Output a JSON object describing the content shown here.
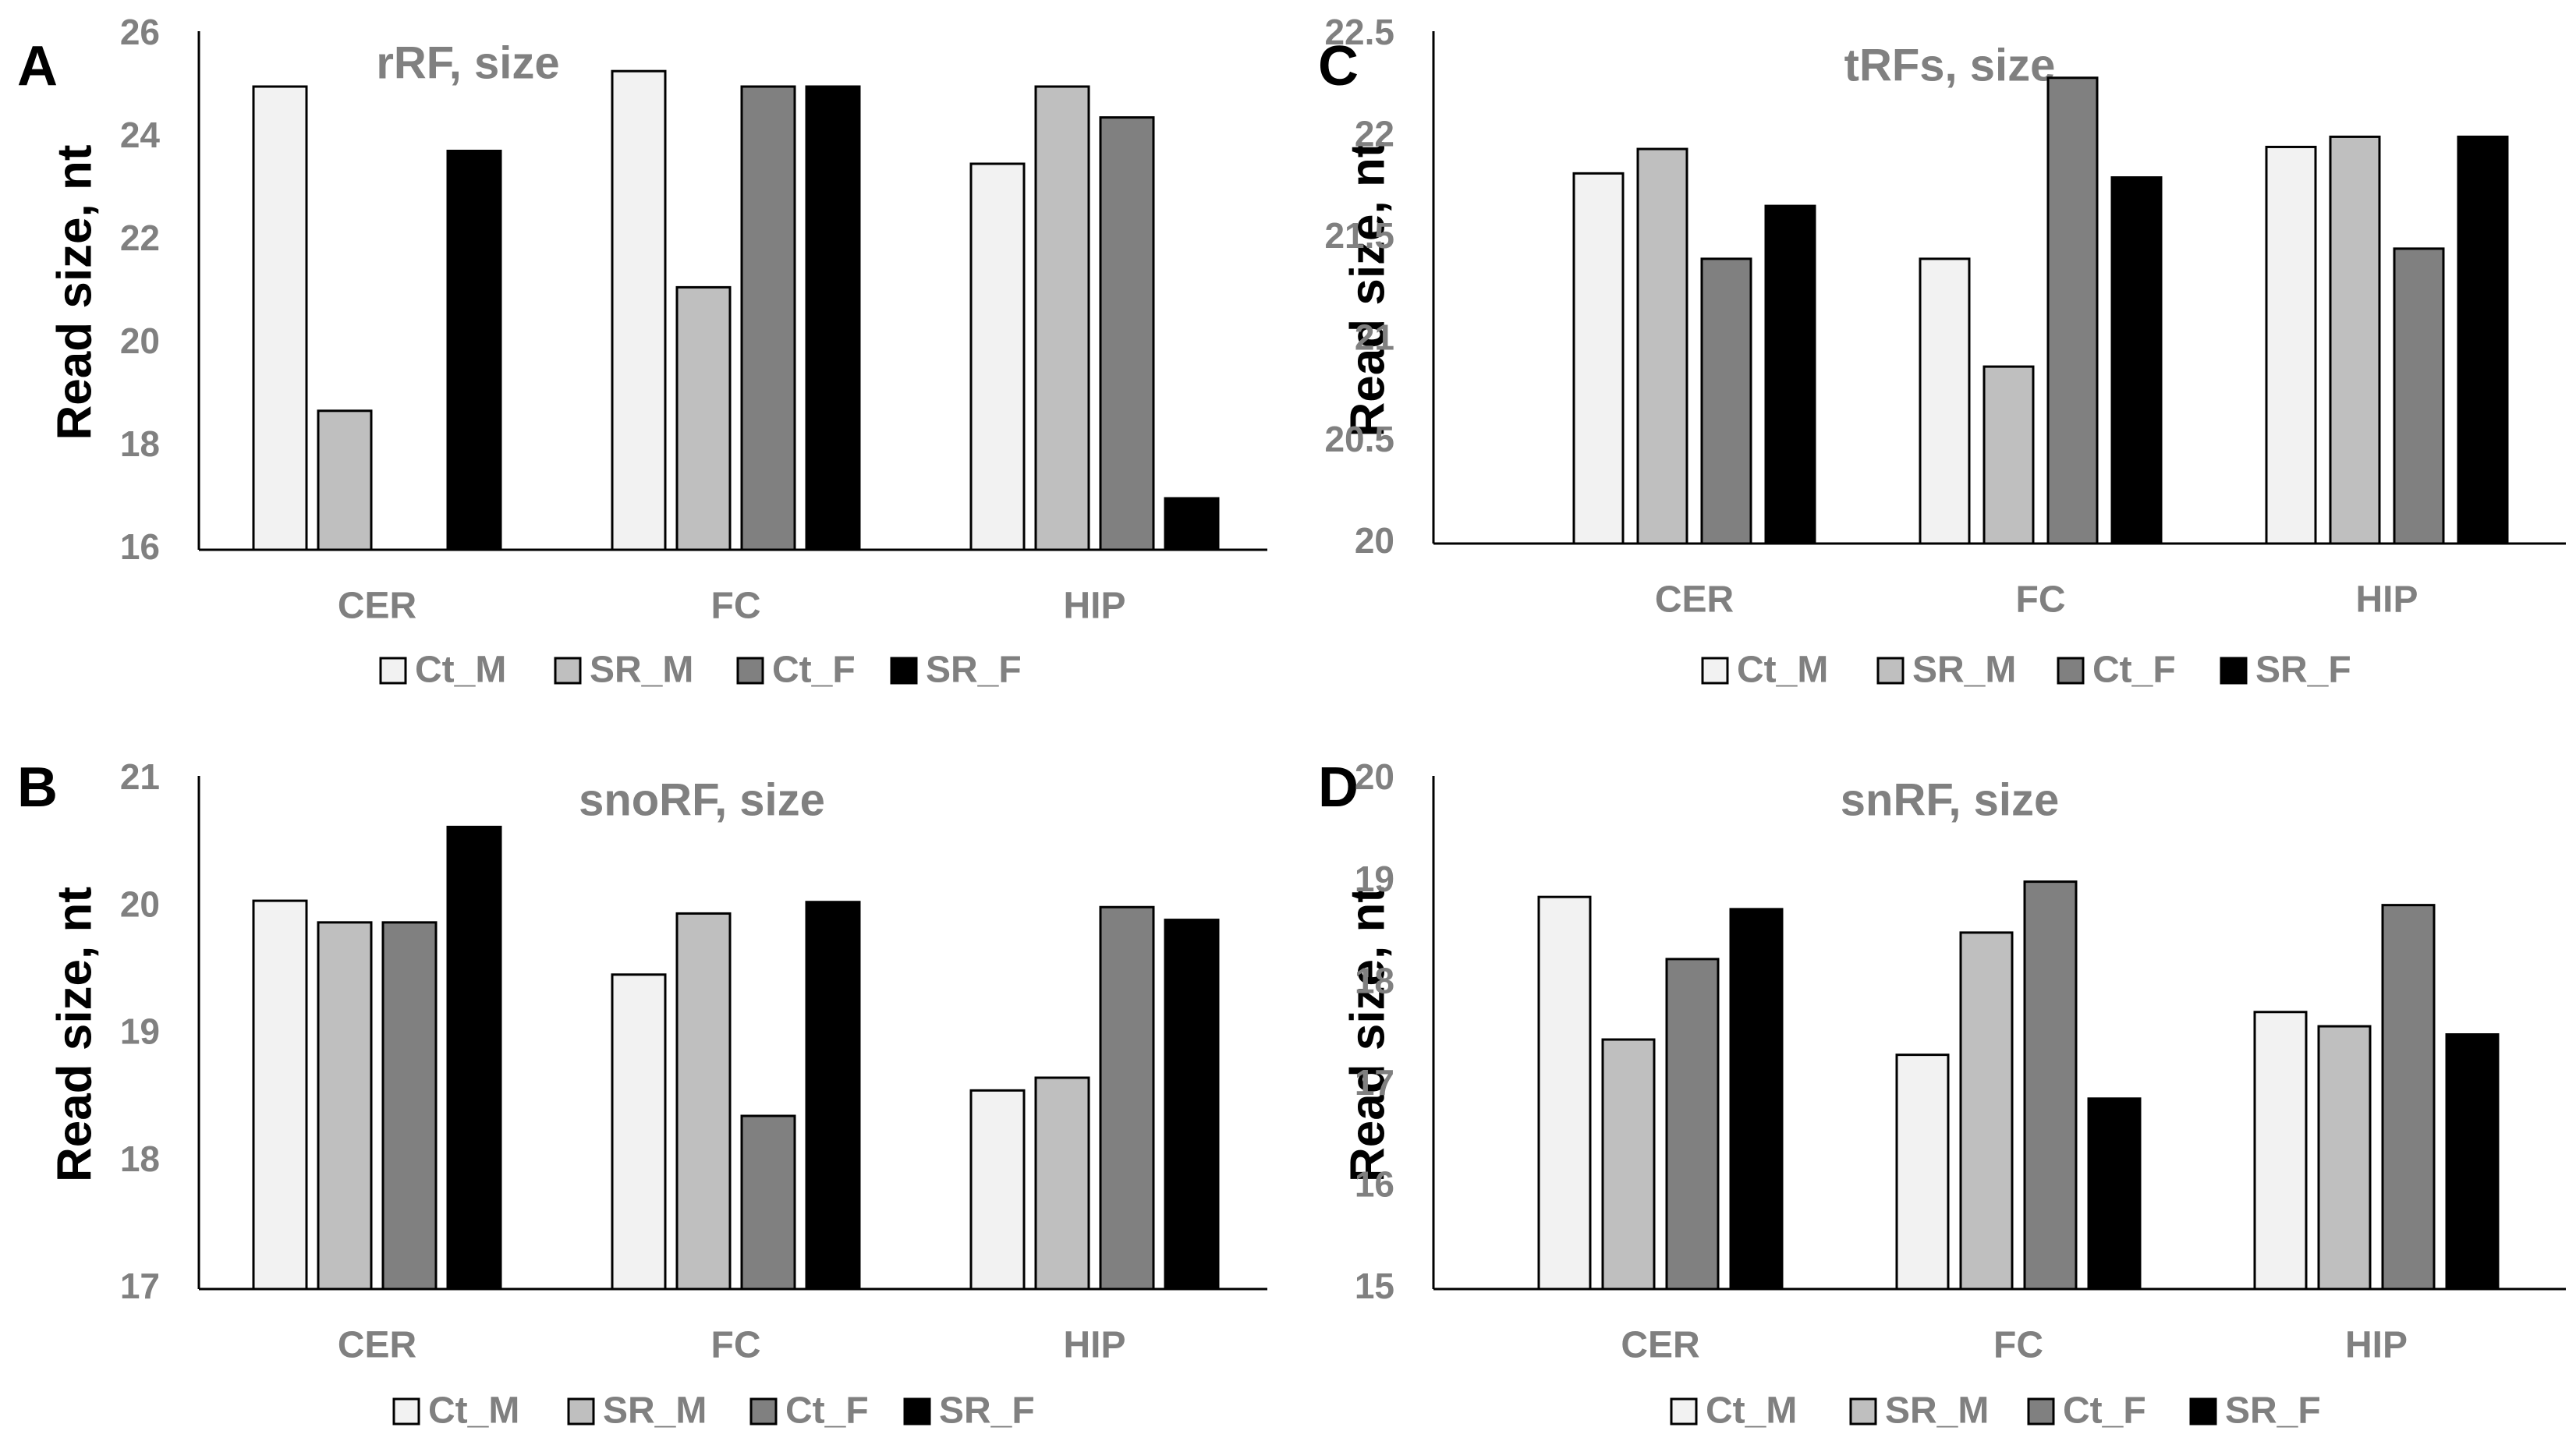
{
  "colors": {
    "Ct_M": "#f2f2f2",
    "SR_M": "#bfbfbf",
    "Ct_F": "#808080",
    "SR_F": "#000000",
    "axis": "#000000",
    "label_gray": "#808080"
  },
  "chart_data": [
    {
      "panel": "A",
      "type": "bar",
      "title": "rRF, size",
      "xlabel": "",
      "ylabel": "Read size, nt",
      "ylim": [
        16,
        26
      ],
      "yticks": [
        16,
        18,
        20,
        22,
        24,
        26
      ],
      "categories": [
        "CER",
        "FC",
        "HIP"
      ],
      "legend": "bottom",
      "series": [
        {
          "name": "Ct_M",
          "values": [
            25.0,
            25.3,
            23.5
          ]
        },
        {
          "name": "SR_M",
          "values": [
            18.7,
            21.1,
            25.0
          ]
        },
        {
          "name": "Ct_F",
          "values": [
            16.0,
            25.0,
            24.4
          ]
        },
        {
          "name": "SR_F",
          "values": [
            23.75,
            25.0,
            17.0
          ]
        }
      ]
    },
    {
      "panel": "C",
      "type": "bar",
      "title": "tRFs, size",
      "xlabel": "",
      "ylabel": "Read size, nt",
      "ylim": [
        20,
        22.5
      ],
      "yticks": [
        20,
        20.5,
        21,
        21.5,
        22,
        22.5
      ],
      "categories": [
        "CER",
        "FC",
        "HIP"
      ],
      "legend": "bottom",
      "series": [
        {
          "name": "Ct_M",
          "values": [
            21.82,
            21.4,
            21.95
          ]
        },
        {
          "name": "SR_M",
          "values": [
            21.94,
            20.87,
            22.0
          ]
        },
        {
          "name": "Ct_F",
          "values": [
            21.4,
            22.29,
            21.45
          ]
        },
        {
          "name": "SR_F",
          "values": [
            21.66,
            21.8,
            22.0
          ]
        }
      ]
    },
    {
      "panel": "B",
      "type": "bar",
      "title": "snoRF, size",
      "xlabel": "",
      "ylabel": "Read size, nt",
      "ylim": [
        17,
        21
      ],
      "yticks": [
        17,
        18,
        19,
        20,
        21
      ],
      "categories": [
        "CER",
        "FC",
        "HIP"
      ],
      "legend": "bottom",
      "series": [
        {
          "name": "Ct_M",
          "values": [
            20.05,
            19.47,
            18.56
          ]
        },
        {
          "name": "SR_M",
          "values": [
            19.88,
            19.95,
            18.66
          ]
        },
        {
          "name": "Ct_F",
          "values": [
            19.88,
            18.36,
            20.0
          ]
        },
        {
          "name": "SR_F",
          "values": [
            20.63,
            20.04,
            19.9
          ]
        }
      ]
    },
    {
      "panel": "D",
      "type": "bar",
      "title": "snRF, size",
      "xlabel": "",
      "ylabel": "Read size, nt",
      "ylim": [
        15,
        20
      ],
      "yticks": [
        15,
        16,
        17,
        18,
        19,
        20
      ],
      "categories": [
        "CER",
        "FC",
        "HIP"
      ],
      "legend": "bottom",
      "series": [
        {
          "name": "Ct_M",
          "values": [
            18.85,
            17.3,
            17.72
          ]
        },
        {
          "name": "SR_M",
          "values": [
            17.45,
            18.5,
            17.58
          ]
        },
        {
          "name": "Ct_F",
          "values": [
            18.24,
            19.0,
            18.77
          ]
        },
        {
          "name": "SR_F",
          "values": [
            18.73,
            16.87,
            17.5
          ]
        }
      ]
    }
  ]
}
